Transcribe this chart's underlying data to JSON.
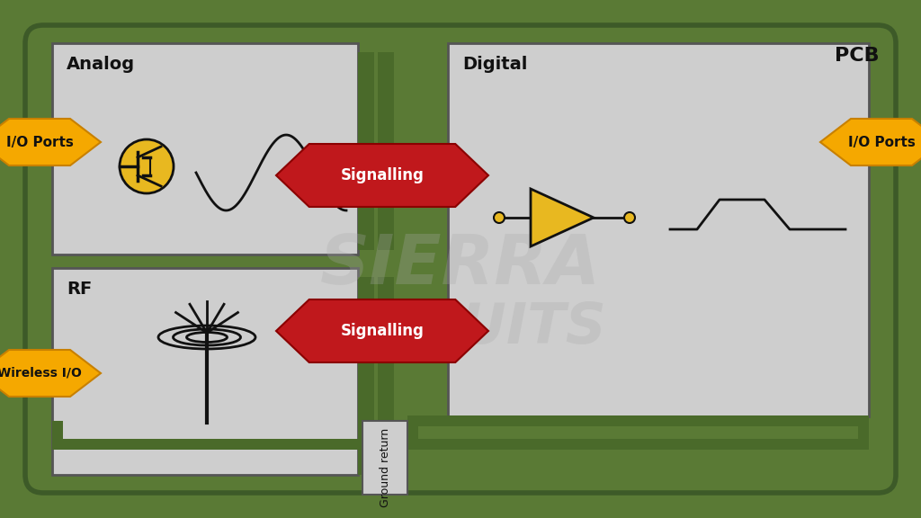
{
  "fig_width": 10.24,
  "fig_height": 5.76,
  "dpi": 100,
  "bg_white": "#ffffff",
  "pcb_green": "#5a7a35",
  "pcb_green_dark": "#3d5a28",
  "box_gray": "#cecece",
  "strip_green": "#4a6a2a",
  "pcb_label": "PCB",
  "analog_label": "Analog",
  "rf_label": "RF",
  "digital_label": "Digital",
  "io_ports_label": "I/O Ports",
  "wireless_io_label": "Wireless I/O",
  "signalling_label": "Signalling",
  "ground_return_label": "Ground return",
  "orange": "#F5A800",
  "orange_dark": "#c88000",
  "red_signal": "#c0181c",
  "red_dark": "#8b0000",
  "transistor_yellow": "#e8b820",
  "black": "#111111",
  "white": "#ffffff",
  "watermark": "#aaaaaa"
}
